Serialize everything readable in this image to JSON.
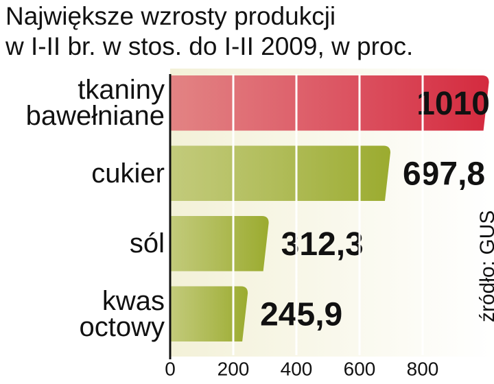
{
  "chart_data": {
    "type": "hbar",
    "title": "Największe wzrosty produkcji\nw I-II br. w stos. do I-II 2009, w proc.",
    "categories": [
      "tkaniny\nbawełniane",
      "cukier",
      "sól",
      "kwas\noctowy"
    ],
    "values": [
      1010,
      697.8,
      312.3,
      245.9
    ],
    "value_labels": [
      "1010",
      "697,8",
      "312,3",
      "245,9"
    ],
    "colors": [
      "#d42a3e",
      "#9bab2f",
      "#9bab2f",
      "#9bab2f"
    ],
    "xlim": [
      0,
      1000
    ],
    "xticks": [
      0,
      200,
      400,
      600,
      800
    ],
    "grid": true,
    "source": "źródło: GUS"
  }
}
